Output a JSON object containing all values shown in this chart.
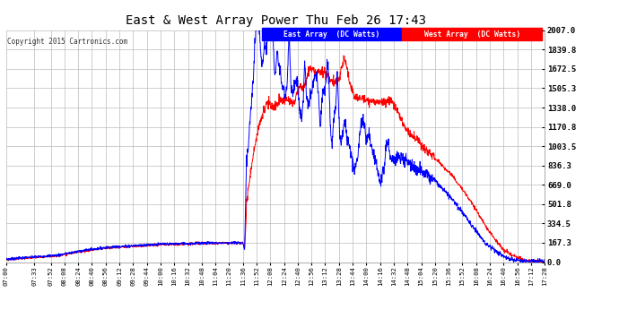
{
  "title": "East & West Array Power Thu Feb 26 17:43",
  "copyright": "Copyright 2015 Cartronics.com",
  "legend_east": "East Array  (DC Watts)",
  "legend_west": "West Array  (DC Watts)",
  "east_color": "#0000ff",
  "west_color": "#ff0000",
  "bg_color": "#ffffff",
  "grid_color": "#bbbbbb",
  "ylim": [
    0,
    2007.0
  ],
  "yticks": [
    0.0,
    167.3,
    334.5,
    501.8,
    669.0,
    836.3,
    1003.5,
    1170.8,
    1338.0,
    1505.3,
    1672.5,
    1839.8,
    2007.0
  ],
  "time_labels": [
    "07:00",
    "07:33",
    "07:52",
    "08:08",
    "08:24",
    "08:40",
    "08:56",
    "09:12",
    "09:28",
    "09:44",
    "10:00",
    "10:16",
    "10:32",
    "10:48",
    "11:04",
    "11:20",
    "11:36",
    "11:52",
    "12:08",
    "12:24",
    "12:40",
    "12:56",
    "13:12",
    "13:28",
    "13:44",
    "14:00",
    "14:16",
    "14:32",
    "14:48",
    "15:04",
    "15:20",
    "15:36",
    "15:52",
    "16:08",
    "16:24",
    "16:40",
    "16:56",
    "17:12",
    "17:28"
  ]
}
